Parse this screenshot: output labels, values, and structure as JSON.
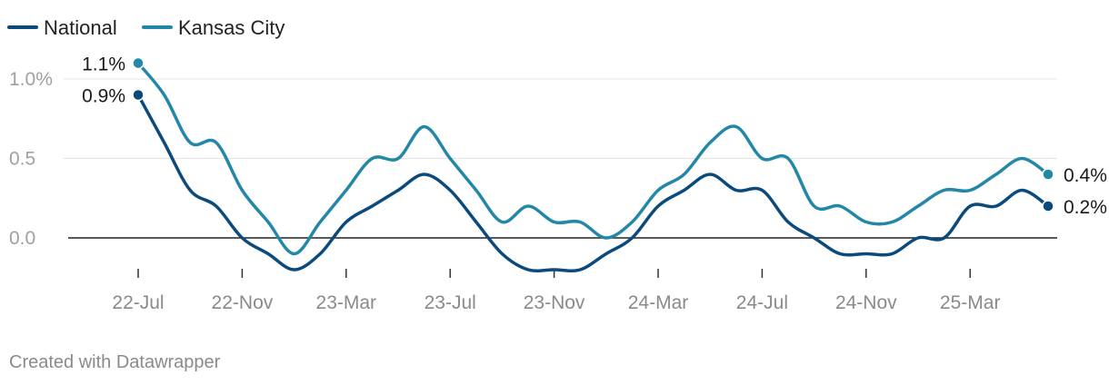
{
  "chart_data": {
    "type": "line",
    "title": "",
    "xlabel": "",
    "ylabel": "",
    "ylim": [
      -0.2,
      1.1
    ],
    "y_ticks": [
      {
        "value": 1.0,
        "label": "1.0%"
      },
      {
        "value": 0.5,
        "label": "0.5"
      },
      {
        "value": 0.0,
        "label": "0.0"
      }
    ],
    "x_ticks": [
      {
        "t": 0,
        "label": "22-Jul"
      },
      {
        "t": 4,
        "label": "22-Nov"
      },
      {
        "t": 8,
        "label": "23-Mar"
      },
      {
        "t": 12,
        "label": "23-Jul"
      },
      {
        "t": 16,
        "label": "23-Nov"
      },
      {
        "t": 20,
        "label": "24-Mar"
      },
      {
        "t": 24,
        "label": "24-Jul"
      },
      {
        "t": 28,
        "label": "24-Nov"
      },
      {
        "t": 32,
        "label": "25-Mar"
      }
    ],
    "x_range": [
      0,
      35
    ],
    "legend": "top-left",
    "series": [
      {
        "name": "National",
        "color": "#0b4a7d",
        "x": [
          0,
          1,
          2,
          3,
          4,
          5,
          6,
          7,
          8,
          9,
          10,
          11,
          12,
          13,
          14,
          15,
          16,
          17,
          18,
          19,
          20,
          21,
          22,
          23,
          24,
          25,
          26,
          27,
          28,
          29,
          30,
          31,
          32,
          33,
          34,
          35
        ],
        "values": [
          0.9,
          0.6,
          0.3,
          0.2,
          0.0,
          -0.1,
          -0.2,
          -0.1,
          0.1,
          0.2,
          0.3,
          0.4,
          0.3,
          0.1,
          -0.1,
          -0.2,
          -0.2,
          -0.2,
          -0.1,
          0.0,
          0.2,
          0.3,
          0.4,
          0.3,
          0.3,
          0.1,
          0.0,
          -0.1,
          -0.1,
          -0.1,
          0.0,
          0.0,
          0.2,
          0.2,
          0.3,
          0.2
        ],
        "end_label": "0.2%",
        "start_label": "0.9%"
      },
      {
        "name": "Kansas City",
        "color": "#2387a8",
        "x": [
          0,
          1,
          2,
          3,
          4,
          5,
          6,
          7,
          8,
          9,
          10,
          11,
          12,
          13,
          14,
          15,
          16,
          17,
          18,
          19,
          20,
          21,
          22,
          23,
          24,
          25,
          26,
          27,
          28,
          29,
          30,
          31,
          32,
          33,
          34,
          35
        ],
        "values": [
          1.1,
          0.9,
          0.6,
          0.6,
          0.3,
          0.1,
          -0.1,
          0.1,
          0.3,
          0.5,
          0.5,
          0.7,
          0.5,
          0.3,
          0.1,
          0.2,
          0.1,
          0.1,
          0.0,
          0.1,
          0.3,
          0.4,
          0.6,
          0.7,
          0.5,
          0.5,
          0.2,
          0.2,
          0.1,
          0.1,
          0.2,
          0.3,
          0.3,
          0.4,
          0.5,
          0.4
        ],
        "end_label": "0.4%",
        "start_label": "1.1%"
      }
    ]
  },
  "footer": {
    "credit": "Created with Datawrapper"
  }
}
